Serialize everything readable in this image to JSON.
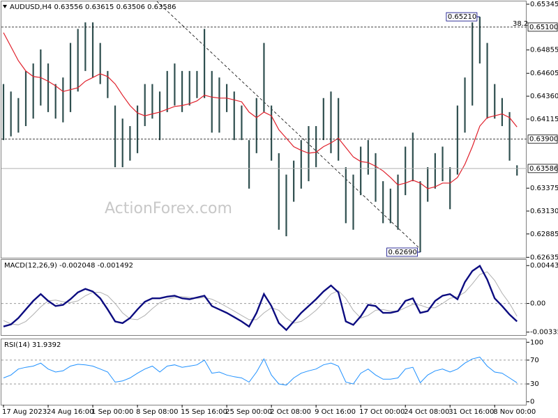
{
  "chart_data": [
    {
      "type": "range_bar",
      "title": "AUDUSD,H4",
      "quote": [
        0.63556,
        0.63615,
        0.63506,
        0.63586
      ],
      "categories": [
        "17 Aug 2023",
        null,
        null,
        null,
        null,
        null,
        "24 Aug 16:00",
        null,
        null,
        null,
        null,
        null,
        "1 Sep 00:00",
        null,
        null,
        null,
        null,
        null,
        "8 Sep 08:00",
        null,
        null,
        null,
        null,
        null,
        "15 Sep 16:00",
        null,
        null,
        null,
        null,
        null,
        "25 Sep 00:00",
        null,
        null,
        null,
        null,
        null,
        "2 Oct 08:00",
        null,
        null,
        null,
        null,
        null,
        "9 Oct 16:00",
        null,
        null,
        null,
        null,
        null,
        "17 Oct 00:00",
        null,
        null,
        null,
        null,
        null,
        "24 Oct 08:00",
        null,
        null,
        null,
        null,
        null,
        "31 Oct 16:00",
        null,
        null,
        null,
        null,
        null,
        "8 Nov 00:00",
        null,
        null,
        null
      ],
      "high": [
        0.6449,
        0.6441,
        0.6434,
        0.6463,
        0.6471,
        0.6486,
        0.6471,
        0.6449,
        0.6456,
        0.6493,
        0.6508,
        0.6515,
        0.6515,
        0.6493,
        0.6463,
        0.6426,
        0.6412,
        0.6404,
        0.6426,
        0.6449,
        0.6449,
        0.6441,
        0.6463,
        0.6471,
        0.6463,
        0.6463,
        0.6463,
        0.6508,
        0.6463,
        0.6456,
        0.6449,
        0.6441,
        0.6426,
        0.6389,
        0.6434,
        0.6493,
        0.6426,
        0.6375,
        0.6352,
        0.6367,
        0.6389,
        0.6404,
        0.6404,
        0.6434,
        0.6441,
        0.6434,
        0.636,
        0.6352,
        0.6382,
        0.6389,
        0.6375,
        0.6345,
        0.6337,
        0.6352,
        0.6382,
        0.6397,
        0.6345,
        0.636,
        0.6375,
        0.6382,
        0.636,
        0.6426,
        0.6456,
        0.6515,
        0.6521,
        0.6493,
        0.6449,
        0.6434,
        0.6419,
        0.6362
      ],
      "low": [
        0.6389,
        0.6393,
        0.6397,
        0.6404,
        0.6412,
        0.6426,
        0.6419,
        0.6412,
        0.6408,
        0.6419,
        0.6441,
        0.6463,
        0.6456,
        0.6449,
        0.6434,
        0.636,
        0.636,
        0.6367,
        0.6375,
        0.6404,
        0.6412,
        0.6389,
        0.6419,
        0.6426,
        0.6419,
        0.6426,
        0.6434,
        0.6434,
        0.6397,
        0.6397,
        0.6419,
        0.6389,
        0.6389,
        0.6337,
        0.6375,
        0.6419,
        0.6367,
        0.6293,
        0.6286,
        0.6323,
        0.6337,
        0.6345,
        0.636,
        0.6389,
        0.6375,
        0.6367,
        0.63,
        0.6293,
        0.633,
        0.6352,
        0.6323,
        0.63,
        0.63,
        0.6293,
        0.633,
        0.6345,
        0.6269,
        0.6323,
        0.6337,
        0.6345,
        0.6315,
        0.6352,
        0.6397,
        0.6426,
        0.6471,
        0.6412,
        0.6412,
        0.6404,
        0.6367,
        0.6351
      ],
      "color": "#2f4f4f",
      "ma": {
        "color": "#e0202b",
        "values": [
          0.6504,
          0.6489,
          0.6474,
          0.6463,
          0.6457,
          0.6456,
          0.6452,
          0.6447,
          0.6441,
          0.6443,
          0.6445,
          0.6452,
          0.6456,
          0.646,
          0.6457,
          0.6449,
          0.6437,
          0.6426,
          0.6418,
          0.6415,
          0.6417,
          0.6419,
          0.6422,
          0.6425,
          0.6426,
          0.6428,
          0.6431,
          0.6437,
          0.6435,
          0.6434,
          0.6434,
          0.6432,
          0.643,
          0.6419,
          0.6413,
          0.6419,
          0.6415,
          0.64,
          0.6391,
          0.6382,
          0.6378,
          0.6375,
          0.6376,
          0.6382,
          0.6386,
          0.6391,
          0.6381,
          0.6371,
          0.6366,
          0.6365,
          0.6361,
          0.6356,
          0.6349,
          0.6341,
          0.6343,
          0.6346,
          0.6343,
          0.6337,
          0.6339,
          0.6343,
          0.6343,
          0.6349,
          0.6363,
          0.6382,
          0.6404,
          0.6413,
          0.6415,
          0.6417,
          0.6413,
          0.6403
        ]
      },
      "ylim": [
        0.6263,
        0.65375
      ],
      "yticks": [
        0.65345,
        0.64855,
        0.64605,
        {
          "value": 0.6436,
          "label": "0.64360"
        },
        0.64115,
        0.63375,
        {
          "value": 0.6313,
          "label": "0.63130"
        },
        0.62885,
        0.62635
      ],
      "grid": false,
      "levels": [
        {
          "value": 0.651,
          "label": "0.65100",
          "note": "38.2"
        },
        {
          "value": 0.639,
          "label": "0.63900"
        }
      ],
      "last": 0.63586,
      "annotations": [
        {
          "value": 0.6521,
          "label": "0.65210"
        },
        {
          "value": 0.6269,
          "label": "0.62690"
        }
      ],
      "watermark": "ActionForex.com"
    },
    {
      "type": "line",
      "title": "MACD(12,26,9)",
      "quote": [
        -0.002048,
        -0.001492
      ],
      "series": [
        {
          "color": "#0c0c80",
          "values": [
            -0.0027,
            -0.00245,
            -0.0017,
            -0.0007,
            0.0003,
            0.0011,
            0.0003,
            -0.0003,
            -0.00016,
            0.0005,
            0.0013,
            0.0017,
            0.0014,
            0.0006,
            -0.0007,
            -0.0021,
            -0.0023,
            -0.0017,
            -0.0007,
            0.0002,
            0.0006,
            0.0006,
            0.0008,
            0.0009,
            0.0006,
            0.0005,
            0.0007,
            0.0009,
            -0.0003,
            -0.0007,
            -0.0011,
            -0.0016,
            -0.0021,
            -0.0027,
            -0.0011,
            0.0011,
            -0.0003,
            -0.0023,
            -0.0031,
            -0.0021,
            -0.0011,
            -0.0003,
            0.0005,
            0.0014,
            0.0021,
            0.0013,
            -0.0021,
            -0.0025,
            -0.0015,
            -0.00016,
            -0.0003,
            -0.0011,
            -0.0011,
            -0.0009,
            0.0003,
            0.0006,
            -0.0011,
            -0.0009,
            0.0003,
            0.0009,
            0.0011,
            0.0005,
            0.0025,
            0.0038,
            0.0044,
            0.0028,
            0.0006,
            -0.0003,
            -0.0013,
            -0.0021
          ]
        },
        {
          "color": "#b0b0b0",
          "values": [
            -0.002,
            -0.0024,
            -0.0025,
            -0.0021,
            -0.0013,
            -0.0004,
            0.0003,
            0.0004,
            0.0002,
            0.0001,
            0.0003,
            0.0009,
            0.0013,
            0.0013,
            0.0009,
            0.0,
            -0.0011,
            -0.0018,
            -0.0019,
            -0.0014,
            -0.0006,
            0.0001,
            0.0005,
            0.0007,
            0.0008,
            0.0007,
            0.0006,
            0.0007,
            0.0005,
            0.0001,
            -0.0004,
            -0.0009,
            -0.0014,
            -0.0019,
            -0.0019,
            -0.0011,
            -0.0005,
            -0.0008,
            -0.0017,
            -0.0023,
            -0.0021,
            -0.0015,
            -0.0008,
            0.0001,
            0.0011,
            0.0015,
            0.0006,
            -0.0008,
            -0.0017,
            -0.0014,
            -0.0008,
            -0.0007,
            -0.0009,
            -0.0009,
            -0.0005,
            -0.0001,
            -0.0002,
            -0.0005,
            -0.0005,
            0.0,
            0.0006,
            0.0008,
            0.0013,
            0.0023,
            0.0034,
            0.0037,
            0.0027,
            0.0012,
            0.0,
            -0.0015
          ]
        }
      ],
      "ylim": [
        -0.0037,
        0.0051
      ],
      "yticks": [
        -0.003351,
        {
          "value": 0,
          "label": "0.00"
        },
        0.00443
      ],
      "grid": "inner"
    },
    {
      "type": "line",
      "title": "RSI(14)",
      "quote": [
        31.9392
      ],
      "series": [
        {
          "color": "#1e90ff",
          "values": [
            40,
            45,
            55,
            58,
            60,
            65,
            55,
            50,
            52,
            60,
            63,
            62,
            60,
            55,
            50,
            33,
            35,
            40,
            48,
            55,
            60,
            50,
            60,
            62,
            58,
            60,
            62,
            70,
            48,
            50,
            45,
            42,
            40,
            33,
            50,
            72,
            45,
            30,
            28,
            40,
            48,
            52,
            55,
            62,
            65,
            60,
            33,
            30,
            48,
            55,
            45,
            38,
            38,
            40,
            55,
            58,
            32,
            45,
            52,
            55,
            50,
            55,
            65,
            72,
            75,
            60,
            50,
            48,
            40,
            32
          ]
        }
      ],
      "ylim": [
        -5,
        105
      ],
      "yticks": [
        0,
        30,
        70,
        100
      ],
      "grid": "inner"
    }
  ]
}
